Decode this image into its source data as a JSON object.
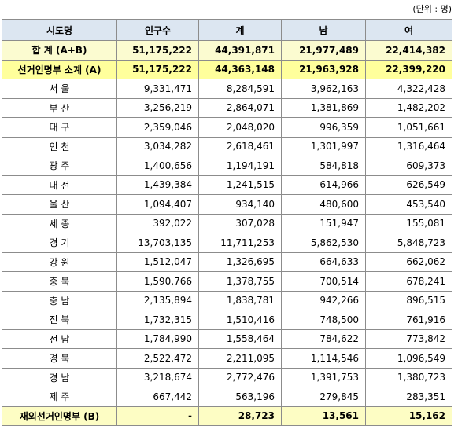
{
  "unit_note": "(단위 : 명)",
  "table": {
    "header": [
      "시도명",
      "인구수",
      "계",
      "남",
      "여"
    ],
    "rows": [
      [
        "합 계 (A+B)",
        "51,175,222",
        "44,391,871",
        "21,977,489",
        "22,414,382"
      ],
      [
        "선거인명부 소계 (A)",
        "51,175,222",
        "44,363,148",
        "21,963,928",
        "22,399,220"
      ],
      [
        "서 울",
        "9,331,471",
        "8,284,591",
        "3,962,163",
        "4,322,428"
      ],
      [
        "부 산",
        "3,256,219",
        "2,864,071",
        "1,381,869",
        "1,482,202"
      ],
      [
        "대 구",
        "2,359,046",
        "2,048,020",
        "996,359",
        "1,051,661"
      ],
      [
        "인 천",
        "3,034,282",
        "2,618,461",
        "1,301,997",
        "1,316,464"
      ],
      [
        "광 주",
        "1,400,656",
        "1,194,191",
        "584,818",
        "609,373"
      ],
      [
        "대 전",
        "1,439,384",
        "1,241,515",
        "614,966",
        "626,549"
      ],
      [
        "울 산",
        "1,094,407",
        "934,140",
        "480,600",
        "453,540"
      ],
      [
        "세 종",
        "392,022",
        "307,028",
        "151,947",
        "155,081"
      ],
      [
        "경 기",
        "13,703,135",
        "11,711,253",
        "5,862,530",
        "5,848,723"
      ],
      [
        "강 원",
        "1,512,047",
        "1,326,695",
        "664,633",
        "662,062"
      ],
      [
        "충 북",
        "1,590,766",
        "1,378,755",
        "700,514",
        "678,241"
      ],
      [
        "충 남",
        "2,135,894",
        "1,838,781",
        "942,266",
        "896,515"
      ],
      [
        "전 북",
        "1,732,315",
        "1,510,416",
        "748,500",
        "761,916"
      ],
      [
        "전 남",
        "1,784,990",
        "1,558,464",
        "784,622",
        "773,842"
      ],
      [
        "경 북",
        "2,522,472",
        "2,211,095",
        "1,114,546",
        "1,096,549"
      ],
      [
        "경 남",
        "3,218,674",
        "2,772,476",
        "1,391,753",
        "1,380,723"
      ],
      [
        "제 주",
        "667,442",
        "563,196",
        "279,845",
        "283,351"
      ],
      [
        "재외선거인명부 (B)",
        "-",
        "28,723",
        "13,561",
        "15,162"
      ]
    ]
  }
}
